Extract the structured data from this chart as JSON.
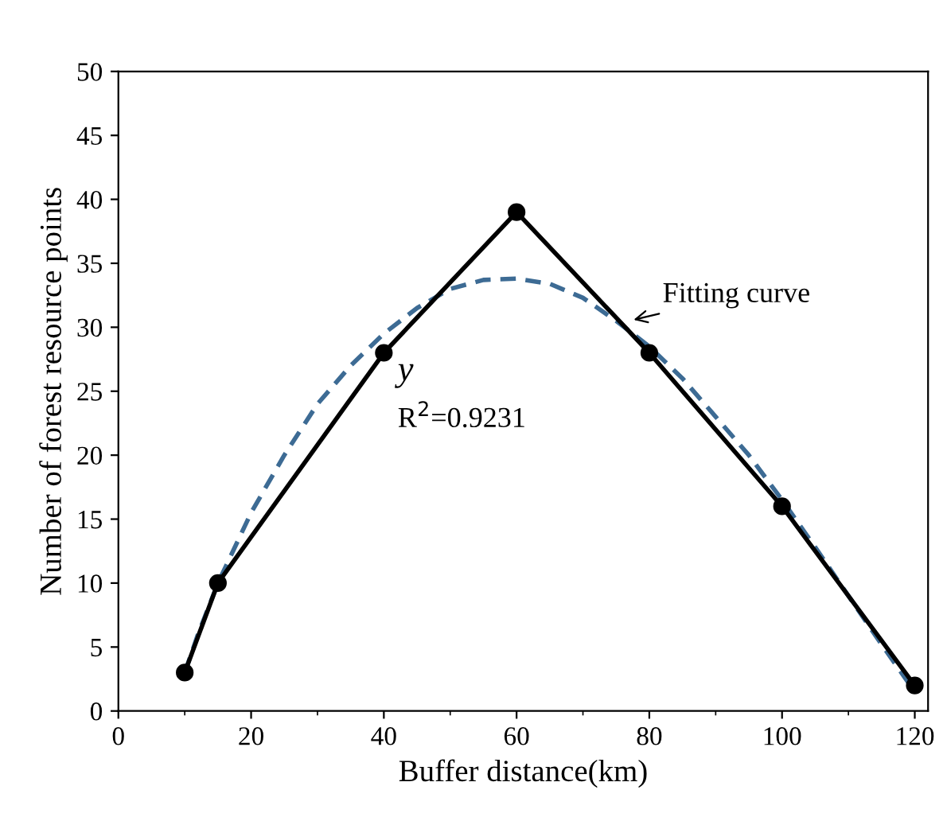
{
  "chart_data": {
    "type": "line",
    "xlabel": "Buffer distance(km)",
    "ylabel": "Number of forest resource points",
    "xlim": [
      0,
      122
    ],
    "ylim": [
      0,
      50
    ],
    "xticks": [
      0,
      20,
      40,
      60,
      80,
      100,
      120
    ],
    "yticks": [
      0,
      5,
      10,
      15,
      20,
      25,
      30,
      35,
      40,
      45,
      50
    ],
    "grid": false,
    "legend": false,
    "series": [
      {
        "color": "#000000",
        "marker": "circle",
        "line_style": "solid",
        "x": [
          10,
          15,
          40,
          60,
          80,
          100,
          120
        ],
        "values": [
          3,
          10,
          28,
          39,
          28,
          16,
          2
        ]
      },
      {
        "color": "#3d6b94",
        "marker": "none",
        "line_style": "dashed",
        "x": [
          10,
          12,
          15,
          20,
          25,
          30,
          35,
          40,
          45,
          50,
          55,
          60,
          65,
          70,
          75,
          80,
          85,
          90,
          95,
          100,
          105,
          110,
          115,
          120
        ],
        "values": [
          3,
          6,
          10,
          15.5,
          20,
          24,
          27,
          29.5,
          31.5,
          33,
          33.7,
          33.8,
          33.4,
          32.3,
          30.5,
          28.5,
          26,
          23,
          20,
          16.5,
          12.8,
          9,
          5.2,
          1.5
        ]
      }
    ],
    "annotations": [
      "y",
      "R$^{2}$=0.9231",
      {
        "text": "Fitting curve",
        "x": 77,
        "y": 30.5
      }
    ]
  }
}
